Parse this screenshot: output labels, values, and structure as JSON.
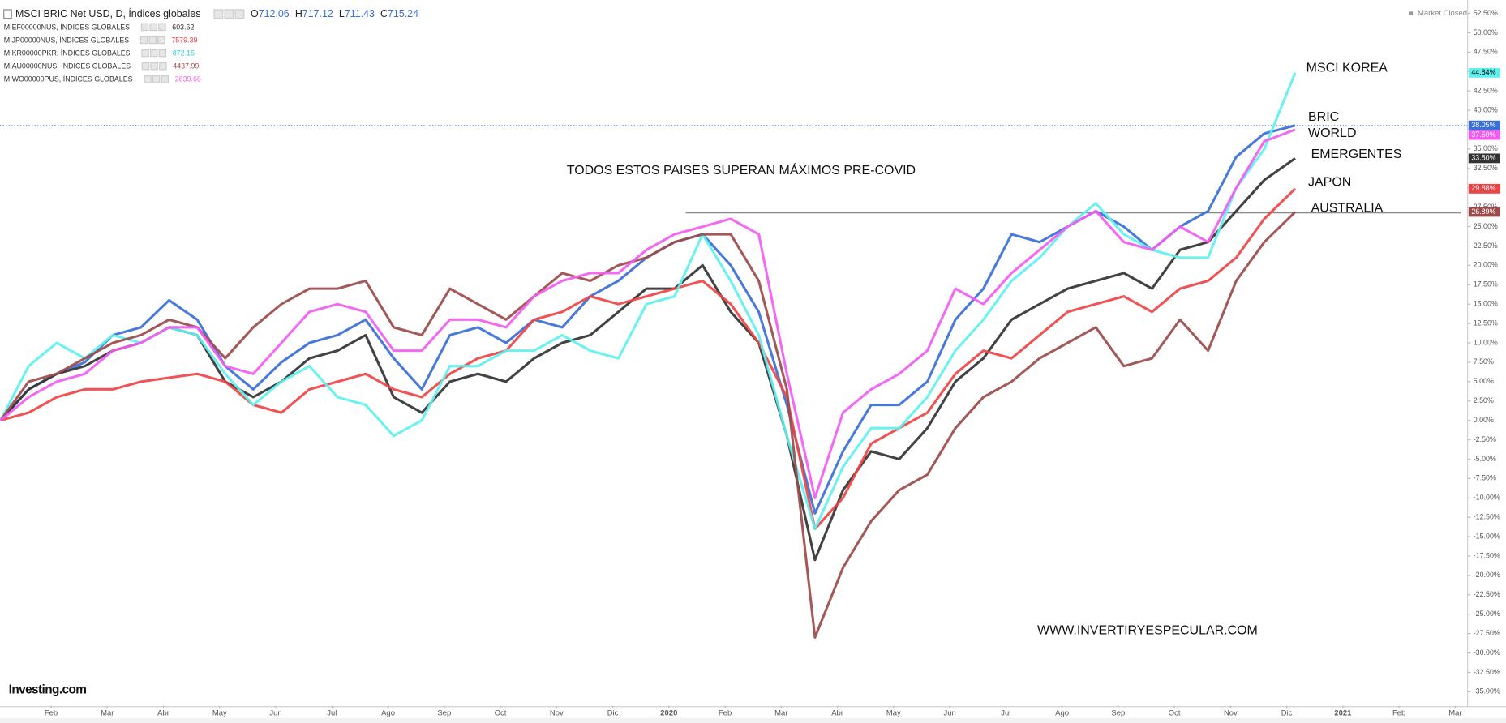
{
  "chart_data": {
    "type": "line",
    "status": "Market Closed",
    "logo": "Investing.com",
    "annotations": [
      "TODOS ESTOS PAISES SUPERAN MÁXIMOS PRE-COVID",
      "WWW.INVERTIRYESPECULAR.COM"
    ],
    "hline": {
      "value": 26.8,
      "from": 12.3,
      "to": 26.1,
      "color": "#888888"
    },
    "xlim": [
      0.09,
      26.22
    ],
    "ylim": [
      -36.8,
      53.6
    ],
    "grid": false,
    "xticks": [
      {
        "value": 1,
        "label": "Feb"
      },
      {
        "value": 2,
        "label": "Mar"
      },
      {
        "value": 3,
        "label": "Abr"
      },
      {
        "value": 4,
        "label": "May"
      },
      {
        "value": 5,
        "label": "Jun"
      },
      {
        "value": 6,
        "label": "Jul"
      },
      {
        "value": 7,
        "label": "Ago"
      },
      {
        "value": 8,
        "label": "Sep"
      },
      {
        "value": 9,
        "label": "Oct"
      },
      {
        "value": 10,
        "label": "Nov"
      },
      {
        "value": 11,
        "label": "Dic"
      },
      {
        "value": 12,
        "label": "2020"
      },
      {
        "value": 13,
        "label": "Feb"
      },
      {
        "value": 14,
        "label": "Mar"
      },
      {
        "value": 15,
        "label": "Abr"
      },
      {
        "value": 16,
        "label": "May"
      },
      {
        "value": 17,
        "label": "Jun"
      },
      {
        "value": 18,
        "label": "Jul"
      },
      {
        "value": 19,
        "label": "Ago"
      },
      {
        "value": 20,
        "label": "Sep"
      },
      {
        "value": 21,
        "label": "Oct"
      },
      {
        "value": 22,
        "label": "Nov"
      },
      {
        "value": 23,
        "label": "Dic"
      },
      {
        "value": 24,
        "label": "2021"
      },
      {
        "value": 25,
        "label": "Feb"
      },
      {
        "value": 26,
        "label": "Mar"
      }
    ],
    "yticks": [
      {
        "value": 52.5,
        "label": "52.50%"
      },
      {
        "value": 50,
        "label": "50.00%"
      },
      {
        "value": 47.5,
        "label": "47.50%"
      },
      {
        "value": 45,
        "label": "45.00%"
      },
      {
        "value": 42.5,
        "label": "42.50%"
      },
      {
        "value": 40,
        "label": "40.00%"
      },
      {
        "value": 37.5,
        "label": "37.50%"
      },
      {
        "value": 35,
        "label": "35.00%"
      },
      {
        "value": 32.5,
        "label": "32.50%"
      },
      {
        "value": 30,
        "label": "30.00%"
      },
      {
        "value": 27.5,
        "label": "27.50%"
      },
      {
        "value": 25,
        "label": "25.00%"
      },
      {
        "value": 22.5,
        "label": "22.50%"
      },
      {
        "value": 20,
        "label": "20.00%"
      },
      {
        "value": 17.5,
        "label": "17.50%"
      },
      {
        "value": 15,
        "label": "15.00%"
      },
      {
        "value": 12.5,
        "label": "12.50%"
      },
      {
        "value": 10,
        "label": "10.00%"
      },
      {
        "value": 7.5,
        "label": "7.50%"
      },
      {
        "value": 5,
        "label": "5.00%"
      },
      {
        "value": 2.5,
        "label": "2.50%"
      },
      {
        "value": 0,
        "label": "0.00%"
      },
      {
        "value": -2.5,
        "label": "-2.50%"
      },
      {
        "value": -5,
        "label": "-5.00%"
      },
      {
        "value": -7.5,
        "label": "-7.50%"
      },
      {
        "value": -10,
        "label": "-10.00%"
      },
      {
        "value": -12.5,
        "label": "-12.50%"
      },
      {
        "value": -15,
        "label": "-15.00%"
      },
      {
        "value": -17.5,
        "label": "-17.50%"
      },
      {
        "value": -20,
        "label": "-20.00%"
      },
      {
        "value": -22.5,
        "label": "-22.50%"
      },
      {
        "value": -25,
        "label": "-25.00%"
      },
      {
        "value": -27.5,
        "label": "-27.50%"
      },
      {
        "value": -30,
        "label": "-30.00%"
      },
      {
        "value": -32.5,
        "label": "-32.50%"
      },
      {
        "value": -35,
        "label": "-35.00%"
      }
    ],
    "x": [
      0.1,
      0.6,
      1.1,
      1.6,
      2.1,
      2.6,
      3.1,
      3.6,
      4.1,
      4.6,
      5.1,
      5.6,
      6.1,
      6.6,
      7.1,
      7.6,
      8.1,
      8.6,
      9.1,
      9.6,
      10.1,
      10.6,
      11.1,
      11.6,
      12.1,
      12.6,
      13.1,
      13.6,
      14.1,
      14.6,
      15.1,
      15.6,
      16.1,
      16.6,
      17.1,
      17.6,
      18.1,
      18.6,
      19.1,
      19.6,
      20.1,
      20.6,
      21.1,
      21.6,
      22.1,
      22.6,
      23.15
    ],
    "series": [
      {
        "name": "MSCI BRIC Net USD, D, Índices globales",
        "ohlc": [
          {
            "key": "O",
            "value": 712.06
          },
          {
            "key": "H",
            "value": 717.12
          },
          {
            "key": "L",
            "value": 711.43
          },
          {
            "key": "C",
            "value": 715.24
          }
        ],
        "annotation": "BRIC",
        "last_label": "38.05%",
        "color": "#3a6fd8",
        "values": [
          0,
          4,
          6,
          7.5,
          11,
          12,
          15.5,
          13,
          7,
          4,
          7.5,
          10,
          11,
          13,
          8,
          4,
          11,
          12,
          10,
          13,
          12,
          16,
          18,
          21,
          23,
          24,
          20,
          14,
          2,
          -12,
          -4,
          2,
          2,
          5,
          13,
          17,
          24,
          23,
          25,
          27,
          25,
          22,
          25,
          27,
          34,
          37,
          38.05
        ]
      },
      {
        "name": "MIEF00000NUS, ÍNDICES GLOBALES",
        "last": 603.62,
        "annotation": "EMERGENTES",
        "last_label": "33.80%",
        "color": "#333333",
        "values": [
          0,
          4,
          6,
          7,
          9,
          10,
          12,
          11,
          5,
          3,
          5,
          8,
          9,
          11,
          3,
          1,
          5,
          6,
          5,
          8,
          10,
          11,
          14,
          17,
          17,
          20,
          14,
          10,
          -2,
          -18,
          -9,
          -4,
          -5,
          -1,
          5,
          8,
          13,
          15,
          17,
          18,
          19,
          17,
          22,
          23,
          27,
          31,
          33.8
        ]
      },
      {
        "name": "MIJP00000NUS, ÍNDICES GLOBALES",
        "last": 7579.39,
        "annotation": "JAPON",
        "last_label": "29.88%",
        "color": "#ee4444",
        "values": [
          0,
          1,
          3,
          4,
          4,
          5,
          5.5,
          6,
          5,
          2,
          1,
          4,
          5,
          6,
          4,
          3,
          6,
          8,
          9,
          13,
          14,
          16,
          15,
          16,
          17,
          18,
          15,
          10,
          3,
          -14,
          -10,
          -3,
          -1,
          1,
          6,
          9,
          8,
          11,
          14,
          15,
          16,
          14,
          17,
          18,
          21,
          26,
          29.88
        ]
      },
      {
        "name": "MIKR00000PKR, ÍNDICES GLOBALES",
        "last": 872.15,
        "annotation": "MSCI KOREA",
        "last_label": "44.84%",
        "color": "#5ff0f0",
        "values": [
          0,
          7,
          10,
          8,
          11,
          10,
          12,
          11,
          6,
          2,
          5,
          7,
          3,
          2,
          -2,
          0,
          7,
          7,
          9,
          9,
          11,
          9,
          8,
          15,
          16,
          24,
          18,
          11,
          -2,
          -14,
          -6,
          -1,
          -1,
          3,
          9,
          13,
          18,
          21,
          25,
          28,
          24,
          22,
          21,
          21,
          30,
          35,
          44.84
        ]
      },
      {
        "name": "MIAU00000NUS, ÍNDICES GLOBALES",
        "last": 4437.99,
        "annotation": "AUSTRALIA",
        "last_label": "26.89%",
        "color": "#9c4b4b",
        "values": [
          0,
          5,
          6,
          8,
          10,
          11,
          13,
          12,
          8,
          12,
          15,
          17,
          17,
          18,
          12,
          11,
          17,
          15,
          13,
          16,
          19,
          18,
          20,
          21,
          23,
          24,
          24,
          18,
          4,
          -28,
          -19,
          -13,
          -9,
          -7,
          -1,
          3,
          5,
          8,
          10,
          12,
          7,
          8,
          13,
          9,
          18,
          23,
          26.89
        ]
      },
      {
        "name": "MIWO00000PUS, ÍNDICES GLOBALES",
        "last": 2639.66,
        "annotation": "WORLD",
        "last_label": "37.50%",
        "color": "#f25cf2",
        "values": [
          0,
          3,
          5,
          6,
          9,
          10,
          12,
          12,
          7,
          6,
          10,
          14,
          15,
          14,
          9,
          9,
          13,
          13,
          12,
          16,
          18,
          19,
          19,
          22,
          24,
          25,
          26,
          24,
          6,
          -10,
          1,
          4,
          6,
          9,
          17,
          15,
          19,
          22,
          25,
          27,
          23,
          22,
          25,
          23,
          30,
          36,
          37.5
        ]
      }
    ]
  }
}
